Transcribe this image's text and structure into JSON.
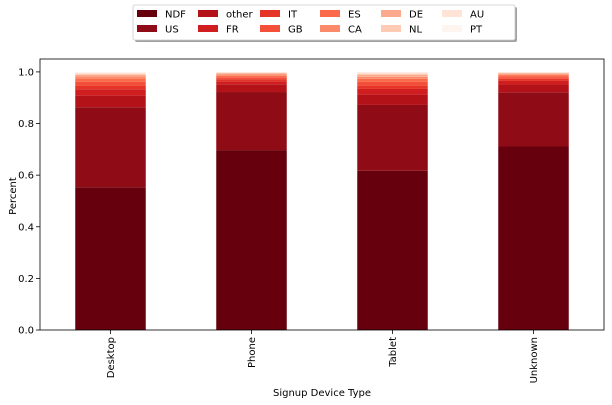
{
  "chart_data": {
    "type": "bar",
    "stacked": true,
    "xlabel": "Signup Device Type",
    "ylabel": "Percent",
    "ylim": [
      0,
      1.05
    ],
    "yticks": [
      "0.0",
      "0.2",
      "0.4",
      "0.6",
      "0.8",
      "1.0"
    ],
    "categories": [
      "Desktop",
      "Phone",
      "Tablet",
      "Unknown"
    ],
    "legend_position": "top-center",
    "series": [
      {
        "name": "NDF",
        "color": "#67000d",
        "values": [
          0.553,
          0.697,
          0.617,
          0.711
        ]
      },
      {
        "name": "US",
        "color": "#8f0b15",
        "values": [
          0.31,
          0.225,
          0.255,
          0.21
        ]
      },
      {
        "name": "other",
        "color": "#b41219",
        "values": [
          0.045,
          0.03,
          0.04,
          0.03
        ]
      },
      {
        "name": "FR",
        "color": "#d01d20",
        "values": [
          0.025,
          0.012,
          0.022,
          0.014
        ]
      },
      {
        "name": "IT",
        "color": "#e53428",
        "values": [
          0.015,
          0.008,
          0.014,
          0.008
        ]
      },
      {
        "name": "GB",
        "color": "#f44f39",
        "values": [
          0.014,
          0.007,
          0.014,
          0.007
        ]
      },
      {
        "name": "ES",
        "color": "#fb6a4a",
        "values": [
          0.012,
          0.006,
          0.011,
          0.006
        ]
      },
      {
        "name": "CA",
        "color": "#fc8a6a",
        "values": [
          0.008,
          0.005,
          0.008,
          0.005
        ]
      },
      {
        "name": "DE",
        "color": "#fcaa8e",
        "values": [
          0.006,
          0.004,
          0.007,
          0.003
        ]
      },
      {
        "name": "NL",
        "color": "#fdcab4",
        "values": [
          0.005,
          0.003,
          0.005,
          0.003
        ]
      },
      {
        "name": "AU",
        "color": "#fee3d6",
        "values": [
          0.004,
          0.002,
          0.005,
          0.002
        ]
      },
      {
        "name": "PT",
        "color": "#fff5f0",
        "values": [
          0.003,
          0.001,
          0.002,
          0.001
        ]
      }
    ]
  }
}
